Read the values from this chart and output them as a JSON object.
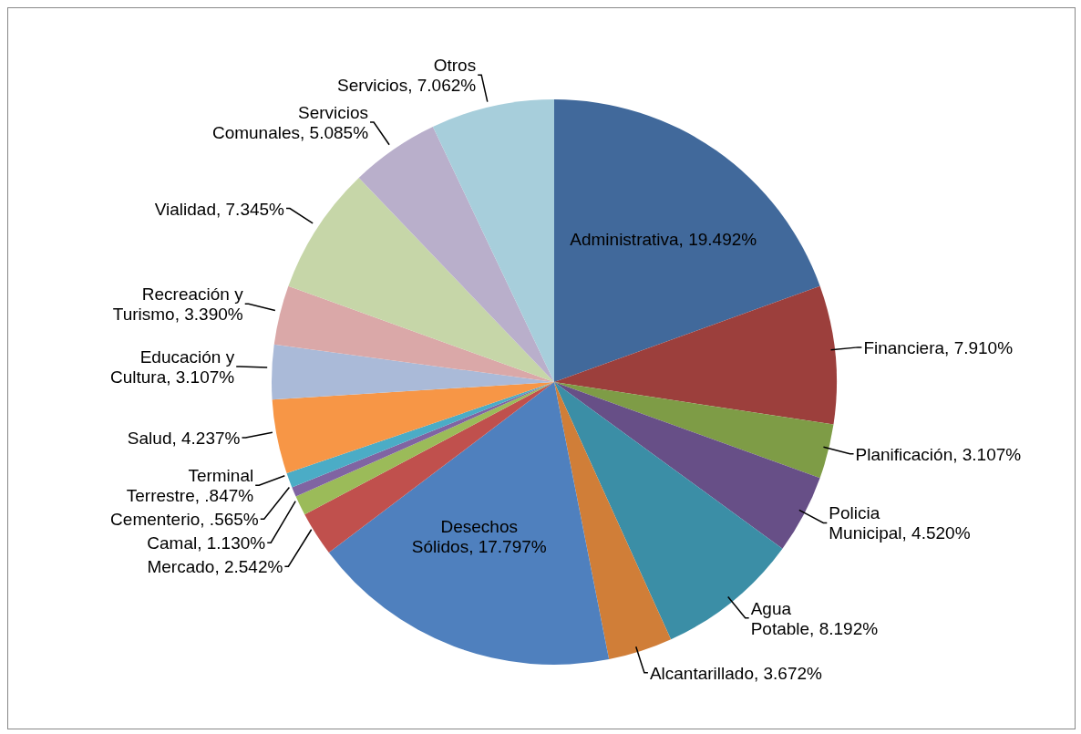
{
  "chart_data": {
    "type": "pie",
    "categories": [
      "Administrativa",
      "Financiera",
      "Planificación",
      "Policia Municipal",
      "Agua Potable",
      "Alcantarillado",
      "Desechos Sólidos",
      "Mercado",
      "Camal",
      "Cementerio",
      "Terminal Terrestre",
      "Salud",
      "Educación y Cultura",
      "Recreación y Turismo",
      "Vialidad",
      "Servicios Comunales",
      "Otros Servicios"
    ],
    "values": [
      19.492,
      7.91,
      3.107,
      4.52,
      8.192,
      3.672,
      17.797,
      2.542,
      1.13,
      0.565,
      0.847,
      4.237,
      3.107,
      3.39,
      7.345,
      5.085,
      7.062
    ],
    "value_labels": [
      "19.492%",
      "7.910%",
      "3.107%",
      "4.520%",
      "8.192%",
      "3.672%",
      "17.797%",
      "2.542%",
      "1.130%",
      ".565%",
      ".847%",
      "4.237%",
      "3.107%",
      "3.390%",
      "7.345%",
      "5.085%",
      "7.062%"
    ],
    "colors": [
      "#41699b",
      "#9c3f3c",
      "#7e9c46",
      "#674f87",
      "#3b8ea6",
      "#d07e38",
      "#4f80be",
      "#c0504d",
      "#9bbb59",
      "#8064a2",
      "#4bacc6",
      "#f79646",
      "#aabad8",
      "#daa8a8",
      "#c6d6a8",
      "#b9afcb",
      "#a7cedb"
    ]
  }
}
